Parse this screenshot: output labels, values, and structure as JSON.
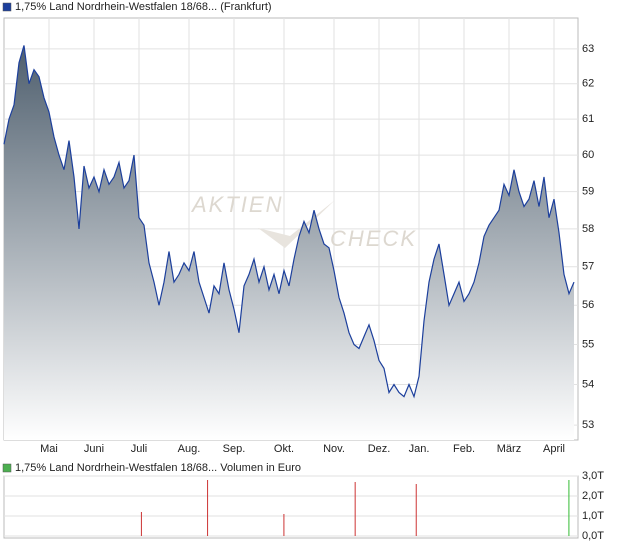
{
  "chart_data": [
    {
      "type": "area",
      "watermark": [
        "AKTIEN",
        "CHECK"
      ],
      "log_scale": true,
      "grid": true,
      "categories": [
        null,
        null,
        null,
        null,
        null,
        null,
        null,
        null,
        null,
        "Mai",
        null,
        null,
        null,
        null,
        null,
        null,
        null,
        null,
        "Juni",
        null,
        null,
        null,
        null,
        null,
        null,
        null,
        null,
        "Juli",
        null,
        null,
        null,
        null,
        null,
        null,
        null,
        null,
        null,
        "Aug.",
        null,
        null,
        null,
        null,
        null,
        null,
        null,
        null,
        "Sep.",
        null,
        null,
        null,
        null,
        null,
        null,
        null,
        null,
        null,
        "Okt.",
        null,
        null,
        null,
        null,
        null,
        null,
        null,
        null,
        null,
        "Nov.",
        null,
        null,
        null,
        null,
        null,
        null,
        null,
        null,
        "Dez.",
        null,
        null,
        null,
        null,
        null,
        null,
        null,
        "Jan.",
        null,
        null,
        null,
        null,
        null,
        null,
        null,
        null,
        "Feb.",
        null,
        null,
        null,
        null,
        null,
        null,
        null,
        null,
        "März",
        null,
        null,
        null,
        null,
        null,
        null,
        null,
        null,
        "April",
        null,
        null,
        null,
        null
      ],
      "series": [
        {
          "name": "1,75% Land Nordrhein-Westfalen 18/68... (Frankfurt)",
          "color": "#1c3f9c",
          "values": [
            60.3,
            61.0,
            61.4,
            62.6,
            63.1,
            62.0,
            62.4,
            62.2,
            61.6,
            61.2,
            60.5,
            60.0,
            59.6,
            60.4,
            59.4,
            58.0,
            59.7,
            59.1,
            59.4,
            59.0,
            59.6,
            59.2,
            59.4,
            59.8,
            59.1,
            59.3,
            60.0,
            58.3,
            58.1,
            57.1,
            56.6,
            56.0,
            56.6,
            57.4,
            56.6,
            56.8,
            57.1,
            56.9,
            57.4,
            56.6,
            56.2,
            55.8,
            56.5,
            56.3,
            57.1,
            56.4,
            55.9,
            55.3,
            56.5,
            56.8,
            57.2,
            56.6,
            57.0,
            56.4,
            56.8,
            56.3,
            56.9,
            56.5,
            57.2,
            57.8,
            58.2,
            57.9,
            58.5,
            58.0,
            57.6,
            57.5,
            56.9,
            56.2,
            55.8,
            55.3,
            55.0,
            54.9,
            55.2,
            55.5,
            55.1,
            54.6,
            54.4,
            53.8,
            54.0,
            53.8,
            53.7,
            54.0,
            53.7,
            54.2,
            55.6,
            56.6,
            57.2,
            57.6,
            56.8,
            56.0,
            56.3,
            56.6,
            56.1,
            56.3,
            56.6,
            57.1,
            57.8,
            58.1,
            58.3,
            58.5,
            59.2,
            58.9,
            59.6,
            59.0,
            58.6,
            58.8,
            59.3,
            58.6,
            59.4,
            58.3,
            58.8,
            57.9,
            56.8,
            56.3,
            56.6
          ]
        }
      ],
      "ylim": [
        52.64,
        63.9
      ],
      "yticks": [
        53,
        54,
        55,
        56,
        57,
        58,
        59,
        60,
        61,
        62,
        63
      ]
    },
    {
      "type": "bar",
      "grid": true,
      "series": [
        {
          "name": "1,75% Land Nordrhein-Westfalen 18/68... Volumen in Euro",
          "color": "#4caf50",
          "values": [
            null,
            null,
            null,
            null,
            null,
            null,
            null,
            null,
            null,
            null,
            null,
            null,
            null,
            null,
            null,
            null,
            null,
            null,
            null,
            null,
            null,
            null,
            null,
            null,
            null,
            null,
            null,
            1.2,
            null,
            null,
            null,
            null,
            null,
            null,
            null,
            null,
            null,
            null,
            null,
            null,
            2.8,
            null,
            null,
            null,
            null,
            null,
            null,
            null,
            null,
            null,
            null,
            null,
            null,
            null,
            null,
            1.1,
            null,
            null,
            null,
            null,
            null,
            null,
            null,
            null,
            null,
            null,
            null,
            null,
            null,
            2.7,
            null,
            null,
            null,
            null,
            null,
            null,
            null,
            null,
            null,
            null,
            null,
            2.6,
            null,
            null,
            null,
            null,
            null,
            null,
            null,
            null,
            null,
            null,
            null,
            null,
            null,
            null,
            null,
            null,
            null,
            null,
            null,
            null,
            null,
            null,
            null,
            null,
            null,
            null,
            null,
            null,
            null,
            2.8,
            null
          ],
          "colors": [
            null,
            null,
            null,
            null,
            null,
            null,
            null,
            null,
            null,
            null,
            null,
            null,
            null,
            null,
            null,
            null,
            null,
            null,
            null,
            null,
            null,
            null,
            null,
            null,
            null,
            null,
            null,
            "#cc3333",
            null,
            null,
            null,
            null,
            null,
            null,
            null,
            null,
            null,
            null,
            null,
            null,
            "#cc3333",
            null,
            null,
            null,
            null,
            null,
            null,
            null,
            null,
            null,
            null,
            null,
            null,
            null,
            null,
            "#cc3333",
            null,
            null,
            null,
            null,
            null,
            null,
            null,
            null,
            null,
            null,
            null,
            null,
            null,
            "#cc3333",
            null,
            null,
            null,
            null,
            null,
            null,
            null,
            null,
            null,
            null,
            null,
            "#cc3333",
            null,
            null,
            null,
            null,
            null,
            null,
            null,
            null,
            null,
            null,
            null,
            null,
            null,
            null,
            null,
            null,
            null,
            null,
            null,
            null,
            null,
            null,
            null,
            null,
            null,
            null,
            null,
            null,
            null,
            "#33bb33",
            null
          ]
        }
      ],
      "ylim": [
        -0.1,
        3.0
      ],
      "yticks": [
        {
          "value": 0,
          "label": "0,0T"
        },
        {
          "value": 1,
          "label": "1,0T"
        },
        {
          "value": 2,
          "label": "2,0T"
        },
        {
          "value": 3,
          "label": "3,0T"
        }
      ]
    }
  ]
}
